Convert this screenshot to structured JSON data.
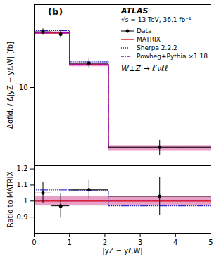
{
  "chart_data": [
    {
      "type": "line",
      "log": "y",
      "ylabel": "Δσfid. / Δ|yZ − yℓ,W| [fb]",
      "annotations": [
        "(b)",
        "ATLAS",
        "√s = 13 TeV, 36.1 fb⁻¹",
        "W±Z → ℓ′νℓℓ"
      ],
      "legend": "upper right",
      "tick_labels": "y",
      "bins": [
        0.0,
        0.5,
        1.0,
        2.1,
        5.0
      ],
      "xlim": [
        0.0,
        5.0
      ],
      "ylim": [
        2.2,
        50.0
      ],
      "yticks": [
        10
      ],
      "series": [
        {
          "type": "band",
          "color": "#e8a0c8",
          "lo": [
            28.0,
            28.0,
            15.0,
            2.95
          ],
          "hi": [
            29.6,
            29.6,
            16.2,
            3.25
          ]
        },
        {
          "name": "Data",
          "type": "errorbar",
          "color": "#000000",
          "marker": "circle",
          "x": [
            0.25,
            0.75,
            1.55,
            3.55
          ],
          "values": [
            29.5,
            28.2,
            16.0,
            3.15
          ],
          "xerr": [
            0.25,
            0.25,
            0.55,
            1.45
          ],
          "yerr_lo": [
            1.8,
            2.0,
            1.4,
            0.45
          ],
          "yerr_hi": [
            1.8,
            2.0,
            1.4,
            0.45
          ]
        },
        {
          "name": "MATRIX",
          "type": "step",
          "color": "#dd0000",
          "line_style": "solid",
          "values": [
            28.8,
            28.8,
            15.6,
            3.1
          ]
        },
        {
          "name": "Sherpa 2.2.2",
          "type": "step",
          "color": "#2222cc",
          "line_style": "dotted",
          "values": [
            30.2,
            30.2,
            16.5,
            3.1
          ]
        },
        {
          "name": "Powheg+Pythia ×1.18",
          "type": "step",
          "color": "#9900bb",
          "line_style": "dashdot",
          "values": [
            28.9,
            28.9,
            15.6,
            3.1
          ]
        }
      ]
    },
    {
      "type": "line",
      "xlabel": "|yZ − yℓ,W|",
      "ylabel": "Ratio to MATRIX",
      "bins": [
        0.0,
        0.5,
        1.0,
        2.1,
        5.0
      ],
      "xlim": [
        0.0,
        5.0
      ],
      "xticks": [
        0,
        1,
        2,
        3,
        4,
        5
      ],
      "ylim": [
        0.8,
        1.22
      ],
      "yticks": [
        0.9,
        1,
        1.1,
        1.2
      ],
      "series": [
        {
          "type": "band",
          "color": "#e8a0c8",
          "lo": 0.97,
          "hi": 1.03
        },
        {
          "name": "MATRIX",
          "type": "hline",
          "color": "#dd0000",
          "line_style": "solid",
          "value": 1.0
        },
        {
          "name": "Powheg+Pythia ×1.18",
          "type": "step",
          "color": "#9900bb",
          "line_style": "dashdot",
          "values": [
            1.005,
            1.005,
            1.005,
            1.005
          ]
        },
        {
          "name": "Sherpa 2.2.2",
          "type": "step",
          "color": "#2222cc",
          "line_style": "dotted",
          "values": [
            1.07,
            1.07,
            1.065,
            0.97
          ]
        },
        {
          "name": "Data",
          "type": "errorbar",
          "color": "#000000",
          "marker": "circle",
          "x": [
            0.25,
            0.75,
            1.55,
            3.55
          ],
          "values": [
            1.05,
            0.97,
            1.07,
            1.03
          ],
          "xerr": [
            0.25,
            0.25,
            0.55,
            1.45
          ],
          "yerr": [
            0.065,
            0.075,
            0.06,
            0.12
          ]
        }
      ]
    }
  ]
}
